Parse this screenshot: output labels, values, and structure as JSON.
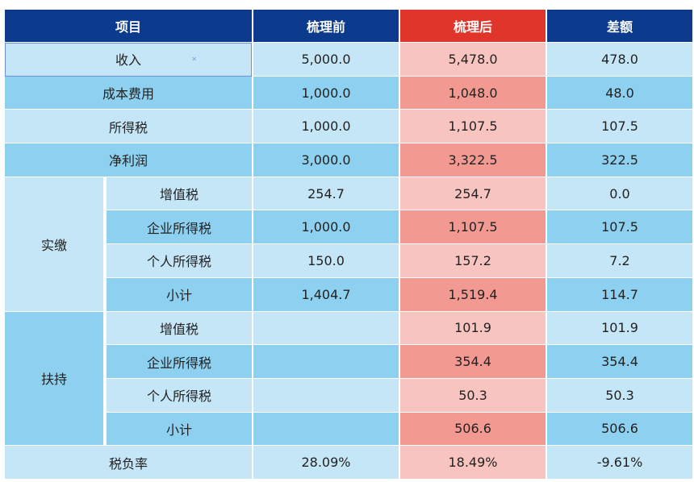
{
  "header": {
    "item": "项目",
    "before": "梳理前",
    "after": "梳理后",
    "diff": "差额"
  },
  "rows": [
    {
      "label": "收入",
      "before": "5,000.0",
      "after": "5,478.0",
      "diff": "478.0"
    },
    {
      "label": "成本费用",
      "before": "1,000.0",
      "after": "1,048.0",
      "diff": "48.0"
    },
    {
      "label": "所得税",
      "before": "1,000.0",
      "after": "1,107.5",
      "diff": "107.5"
    },
    {
      "label": "净利润",
      "before": "3,000.0",
      "after": "3,322.5",
      "diff": "322.5"
    }
  ],
  "groups": [
    {
      "name": "实缴",
      "items": [
        {
          "label": "增值税",
          "before": "254.7",
          "after": "254.7",
          "diff": "0.0"
        },
        {
          "label": "企业所得税",
          "before": "1,000.0",
          "after": "1,107.5",
          "diff": "107.5"
        },
        {
          "label": "个人所得税",
          "before": "150.0",
          "after": "157.2",
          "diff": "7.2"
        },
        {
          "label": "小计",
          "before": "1,404.7",
          "after": "1,519.4",
          "diff": "114.7"
        }
      ]
    },
    {
      "name": "扶持",
      "items": [
        {
          "label": "增值税",
          "before": "",
          "after": "101.9",
          "diff": "101.9"
        },
        {
          "label": "企业所得税",
          "before": "",
          "after": "354.4",
          "diff": "354.4"
        },
        {
          "label": "个人所得税",
          "before": "",
          "after": "50.3",
          "diff": "50.3"
        },
        {
          "label": "小计",
          "before": "",
          "after": "506.6",
          "diff": "506.6"
        }
      ]
    }
  ],
  "footer": {
    "label": "税负率",
    "before": "28.09%",
    "after": "18.49%",
    "diff": "-9.61%"
  },
  "colors": {
    "header_bg": "#0c3a8c",
    "header_accent": "#e0352b",
    "row_light": "#c5e6f7",
    "row_dark": "#8ed0ef",
    "pink_light": "#f8c4c0",
    "pink_dark": "#f29a92"
  }
}
